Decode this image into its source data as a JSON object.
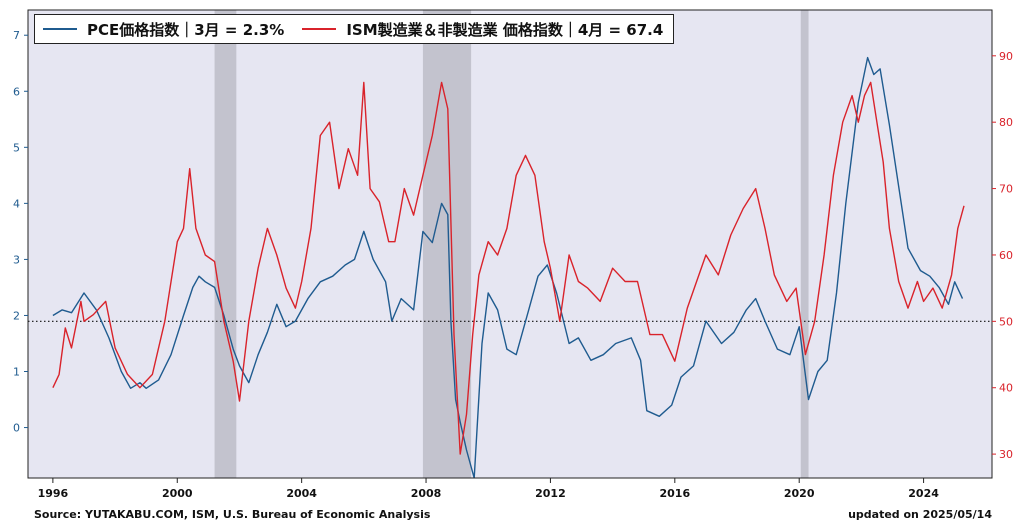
{
  "chart_data": {
    "type": "line",
    "title": "",
    "xlabel": "",
    "ylabel_left": "",
    "ylabel_right": "",
    "xlim": [
      1995.2,
      2026.2
    ],
    "ylim_left": [
      -0.9,
      7.45
    ],
    "ylim_right": [
      26.4,
      96.9
    ],
    "xticks": [
      1996,
      2000,
      2004,
      2008,
      2012,
      2016,
      2020,
      2024
    ],
    "yticks_left": [
      0,
      1,
      2,
      3,
      4,
      5,
      6,
      7
    ],
    "yticks_right": [
      30,
      40,
      50,
      60,
      70,
      80,
      90
    ],
    "reference_line": {
      "axis": "right",
      "value": 50,
      "style": "dotted"
    },
    "recessions": [
      [
        2001.2,
        2001.9
      ],
      [
        2007.9,
        2009.45
      ],
      [
        2020.05,
        2020.3
      ]
    ],
    "grid": false,
    "legend_position": "top-left",
    "background_color": "#e6e6f2",
    "series": [
      {
        "name": "PCE価格指数｜3月 = 2.3%",
        "axis": "left",
        "color": "#1f5b8f",
        "points": [
          [
            1996.0,
            2.0
          ],
          [
            1996.3,
            2.1
          ],
          [
            1996.6,
            2.05
          ],
          [
            1997.0,
            2.4
          ],
          [
            1997.4,
            2.1
          ],
          [
            1997.8,
            1.6
          ],
          [
            1998.2,
            1.0
          ],
          [
            1998.5,
            0.7
          ],
          [
            1998.8,
            0.8
          ],
          [
            1999.0,
            0.7
          ],
          [
            1999.4,
            0.85
          ],
          [
            1999.8,
            1.3
          ],
          [
            2000.2,
            2.0
          ],
          [
            2000.5,
            2.5
          ],
          [
            2000.7,
            2.7
          ],
          [
            2000.9,
            2.6
          ],
          [
            2001.2,
            2.5
          ],
          [
            2001.5,
            2.0
          ],
          [
            2001.8,
            1.4
          ],
          [
            2002.0,
            1.1
          ],
          [
            2002.3,
            0.8
          ],
          [
            2002.6,
            1.3
          ],
          [
            2002.9,
            1.7
          ],
          [
            2003.2,
            2.2
          ],
          [
            2003.5,
            1.8
          ],
          [
            2003.8,
            1.9
          ],
          [
            2004.2,
            2.3
          ],
          [
            2004.6,
            2.6
          ],
          [
            2005.0,
            2.7
          ],
          [
            2005.4,
            2.9
          ],
          [
            2005.7,
            3.0
          ],
          [
            2006.0,
            3.5
          ],
          [
            2006.3,
            3.0
          ],
          [
            2006.7,
            2.6
          ],
          [
            2006.9,
            1.9
          ],
          [
            2007.2,
            2.3
          ],
          [
            2007.6,
            2.1
          ],
          [
            2007.9,
            3.5
          ],
          [
            2008.2,
            3.3
          ],
          [
            2008.5,
            4.0
          ],
          [
            2008.7,
            3.8
          ],
          [
            2008.8,
            1.9
          ],
          [
            2008.95,
            0.5
          ],
          [
            2009.1,
            0.1
          ],
          [
            2009.3,
            -0.4
          ],
          [
            2009.55,
            -0.9
          ],
          [
            2009.8,
            1.5
          ],
          [
            2010.0,
            2.4
          ],
          [
            2010.3,
            2.1
          ],
          [
            2010.6,
            1.4
          ],
          [
            2010.9,
            1.3
          ],
          [
            2011.3,
            2.1
          ],
          [
            2011.6,
            2.7
          ],
          [
            2011.9,
            2.9
          ],
          [
            2012.2,
            2.4
          ],
          [
            2012.6,
            1.5
          ],
          [
            2012.9,
            1.6
          ],
          [
            2013.3,
            1.2
          ],
          [
            2013.7,
            1.3
          ],
          [
            2014.1,
            1.5
          ],
          [
            2014.6,
            1.6
          ],
          [
            2014.9,
            1.2
          ],
          [
            2015.1,
            0.3
          ],
          [
            2015.5,
            0.2
          ],
          [
            2015.9,
            0.4
          ],
          [
            2016.2,
            0.9
          ],
          [
            2016.6,
            1.1
          ],
          [
            2017.0,
            1.9
          ],
          [
            2017.5,
            1.5
          ],
          [
            2017.9,
            1.7
          ],
          [
            2018.3,
            2.1
          ],
          [
            2018.6,
            2.3
          ],
          [
            2018.9,
            1.9
          ],
          [
            2019.3,
            1.4
          ],
          [
            2019.7,
            1.3
          ],
          [
            2020.0,
            1.8
          ],
          [
            2020.3,
            0.5
          ],
          [
            2020.6,
            1.0
          ],
          [
            2020.9,
            1.2
          ],
          [
            2021.2,
            2.4
          ],
          [
            2021.5,
            4.0
          ],
          [
            2021.9,
            5.8
          ],
          [
            2022.2,
            6.6
          ],
          [
            2022.4,
            6.3
          ],
          [
            2022.6,
            6.4
          ],
          [
            2022.9,
            5.4
          ],
          [
            2023.2,
            4.3
          ],
          [
            2023.5,
            3.2
          ],
          [
            2023.9,
            2.8
          ],
          [
            2024.2,
            2.7
          ],
          [
            2024.5,
            2.5
          ],
          [
            2024.8,
            2.2
          ],
          [
            2025.0,
            2.6
          ],
          [
            2025.25,
            2.3
          ]
        ]
      },
      {
        "name": "ISM製造業＆非製造業 価格指数｜4月 = 67.4",
        "axis": "right",
        "color": "#d9232b",
        "points": [
          [
            1996.0,
            40
          ],
          [
            1996.2,
            42
          ],
          [
            1996.4,
            49
          ],
          [
            1996.6,
            46
          ],
          [
            1996.9,
            53
          ],
          [
            1997.0,
            50
          ],
          [
            1997.3,
            51
          ],
          [
            1997.7,
            53
          ],
          [
            1998.0,
            46
          ],
          [
            1998.4,
            42
          ],
          [
            1998.8,
            40
          ],
          [
            1999.2,
            42
          ],
          [
            1999.6,
            50
          ],
          [
            2000.0,
            62
          ],
          [
            2000.2,
            64
          ],
          [
            2000.4,
            73
          ],
          [
            2000.6,
            64
          ],
          [
            2000.9,
            60
          ],
          [
            2001.2,
            59
          ],
          [
            2001.5,
            50
          ],
          [
            2001.8,
            44
          ],
          [
            2002.0,
            38
          ],
          [
            2002.3,
            50
          ],
          [
            2002.6,
            58
          ],
          [
            2002.9,
            64
          ],
          [
            2003.2,
            60
          ],
          [
            2003.5,
            55
          ],
          [
            2003.8,
            52
          ],
          [
            2004.0,
            56
          ],
          [
            2004.3,
            64
          ],
          [
            2004.6,
            78
          ],
          [
            2004.9,
            80
          ],
          [
            2005.2,
            70
          ],
          [
            2005.5,
            76
          ],
          [
            2005.8,
            72
          ],
          [
            2006.0,
            86
          ],
          [
            2006.2,
            70
          ],
          [
            2006.5,
            68
          ],
          [
            2006.8,
            62
          ],
          [
            2007.0,
            62
          ],
          [
            2007.3,
            70
          ],
          [
            2007.6,
            66
          ],
          [
            2007.9,
            72
          ],
          [
            2008.2,
            78
          ],
          [
            2008.5,
            86
          ],
          [
            2008.7,
            82
          ],
          [
            2008.9,
            48
          ],
          [
            2009.1,
            30
          ],
          [
            2009.3,
            36
          ],
          [
            2009.5,
            48
          ],
          [
            2009.7,
            57
          ],
          [
            2010.0,
            62
          ],
          [
            2010.3,
            60
          ],
          [
            2010.6,
            64
          ],
          [
            2010.9,
            72
          ],
          [
            2011.2,
            75
          ],
          [
            2011.5,
            72
          ],
          [
            2011.8,
            62
          ],
          [
            2012.0,
            58
          ],
          [
            2012.3,
            50
          ],
          [
            2012.6,
            60
          ],
          [
            2012.9,
            56
          ],
          [
            2013.2,
            55
          ],
          [
            2013.6,
            53
          ],
          [
            2014.0,
            58
          ],
          [
            2014.4,
            56
          ],
          [
            2014.8,
            56
          ],
          [
            2015.2,
            48
          ],
          [
            2015.6,
            48
          ],
          [
            2016.0,
            44
          ],
          [
            2016.4,
            52
          ],
          [
            2016.7,
            56
          ],
          [
            2017.0,
            60
          ],
          [
            2017.4,
            57
          ],
          [
            2017.8,
            63
          ],
          [
            2018.2,
            67
          ],
          [
            2018.6,
            70
          ],
          [
            2018.9,
            64
          ],
          [
            2019.2,
            57
          ],
          [
            2019.6,
            53
          ],
          [
            2019.9,
            55
          ],
          [
            2020.2,
            45
          ],
          [
            2020.5,
            50
          ],
          [
            2020.8,
            60
          ],
          [
            2021.1,
            72
          ],
          [
            2021.4,
            80
          ],
          [
            2021.7,
            84
          ],
          [
            2021.9,
            80
          ],
          [
            2022.1,
            84
          ],
          [
            2022.3,
            86
          ],
          [
            2022.5,
            80
          ],
          [
            2022.7,
            74
          ],
          [
            2022.9,
            64
          ],
          [
            2023.2,
            56
          ],
          [
            2023.5,
            52
          ],
          [
            2023.8,
            56
          ],
          [
            2024.0,
            53
          ],
          [
            2024.3,
            55
          ],
          [
            2024.6,
            52
          ],
          [
            2024.9,
            57
          ],
          [
            2025.1,
            64
          ],
          [
            2025.3,
            67.4
          ]
        ]
      }
    ]
  },
  "legend": {
    "entries": [
      {
        "label": "PCE価格指数｜3月 = 2.3%",
        "color": "#1f5b8f"
      },
      {
        "label": "ISM製造業＆非製造業 価格指数｜4月 = 67.4",
        "color": "#d9232b"
      }
    ]
  },
  "footer": {
    "source": "Source: YUTAKABU.COM, ISM,  U.S. Bureau of Economic Analysis",
    "updated": "updated on 2025/05/14"
  }
}
